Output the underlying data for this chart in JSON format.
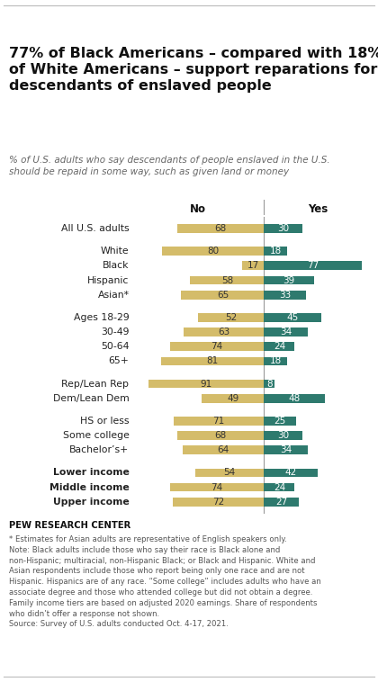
{
  "title": "77% of Black Americans – compared with 18%\nof White Americans – support reparations for\ndescendants of enslaved people",
  "subtitle": "% of U.S. adults who say descendants of people enslaved in the U.S.\nshould be repaid in some way, such as given land or money",
  "categories": [
    "All U.S. adults",
    "White",
    "Black",
    "Hispanic",
    "Asian*",
    "Ages 18-29",
    "30-49",
    "50-64",
    "65+",
    "Rep/Lean Rep",
    "Dem/Lean Dem",
    "HS or less",
    "Some college",
    "Bachelor’s+",
    "Lower income",
    "Middle income",
    "Upper income"
  ],
  "no_values": [
    68,
    80,
    17,
    58,
    65,
    52,
    63,
    74,
    81,
    91,
    49,
    71,
    68,
    64,
    54,
    74,
    72
  ],
  "yes_values": [
    30,
    18,
    77,
    39,
    33,
    45,
    34,
    24,
    18,
    8,
    48,
    25,
    30,
    34,
    42,
    24,
    27
  ],
  "group_breaks_after": [
    0,
    4,
    8,
    10,
    13
  ],
  "no_color": "#d4bc6a",
  "yes_color": "#2e7a6e",
  "bar_height": 0.6,
  "footnote": "* Estimates for Asian adults are representative of English speakers only.\nNote: Black adults include those who say their race is Black alone and\nnon-Hispanic; multiracial, non-Hispanic Black; or Black and Hispanic. White and\nAsian respondents include those who report being only one race and are not\nHispanic. Hispanics are of any race. “Some college” includes adults who have an\nassociate degree and those who attended college but did not obtain a degree.\nFamily income tiers are based on adjusted 2020 earnings. Share of respondents\nwho didn’t offer a response not shown.\nSource: Survey of U.S. adults conducted Oct. 4-17, 2021.",
  "source_label": "PEW RESEARCH CENTER",
  "bold_labels": [
    "Lower income",
    "Middle income",
    "Upper income"
  ],
  "xlim_left": -105,
  "xlim_right": 85
}
